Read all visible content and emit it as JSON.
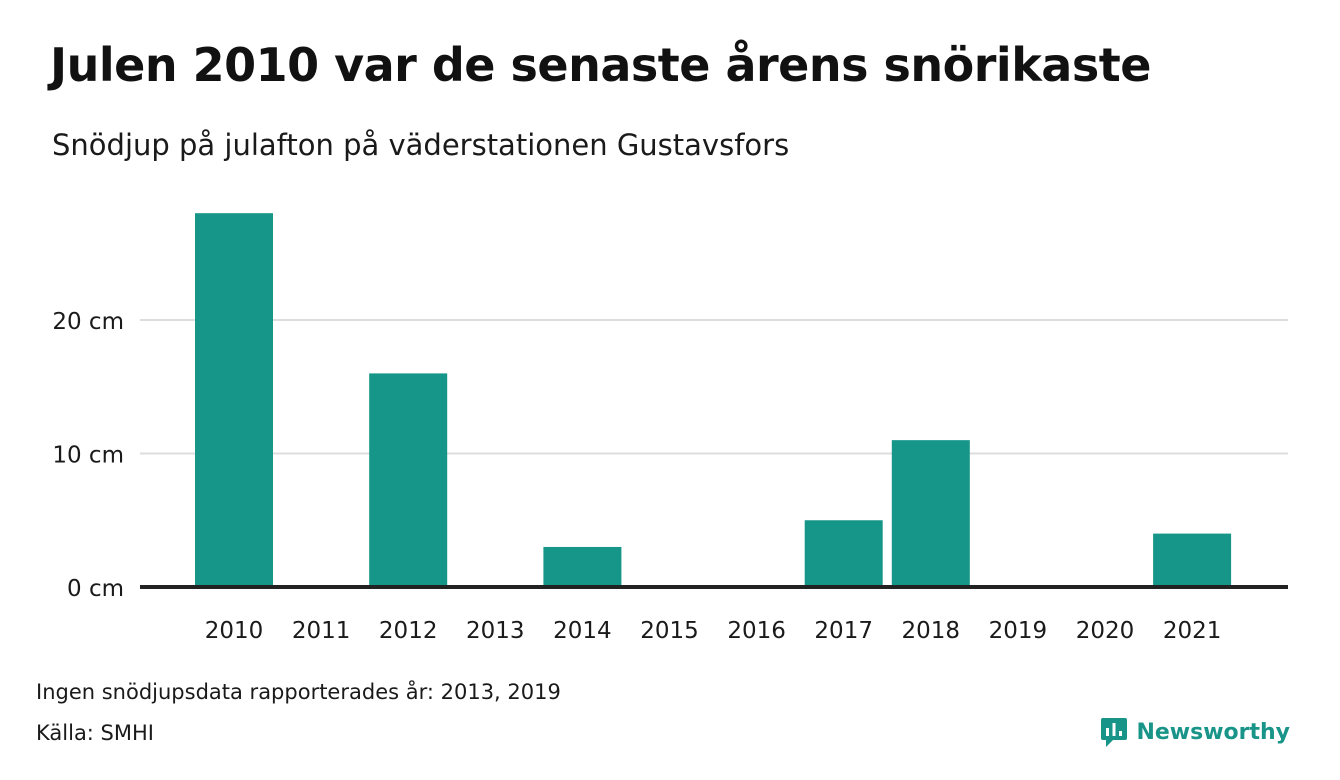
{
  "title": "Julen 2010 var de senaste årens snörikaste",
  "subtitle": "Snödjup på julafton på väderstationen Gustavsfors",
  "note": "Ingen snödjupsdata rapporterades år: 2013, 2019",
  "source": "Källa: SMHI",
  "brand": {
    "name": "Newsworthy",
    "icon": "newsworthy-logo-icon"
  },
  "colors": {
    "bar": "#169688",
    "grid": "#dddddd",
    "axis": "#222222",
    "brand": "#199488"
  },
  "chart_data": {
    "type": "bar",
    "categories": [
      "2010",
      "2011",
      "2012",
      "2013",
      "2014",
      "2015",
      "2016",
      "2017",
      "2018",
      "2019",
      "2020",
      "2021"
    ],
    "values": [
      28,
      0,
      16,
      null,
      3,
      0,
      0,
      5,
      11,
      null,
      0,
      4
    ],
    "unit": "cm",
    "yticks": [
      0,
      10,
      20
    ],
    "ytick_labels": [
      "0 cm",
      "10 cm",
      "20 cm"
    ],
    "ylim": [
      0,
      30
    ],
    "grid": true,
    "legend": false
  }
}
